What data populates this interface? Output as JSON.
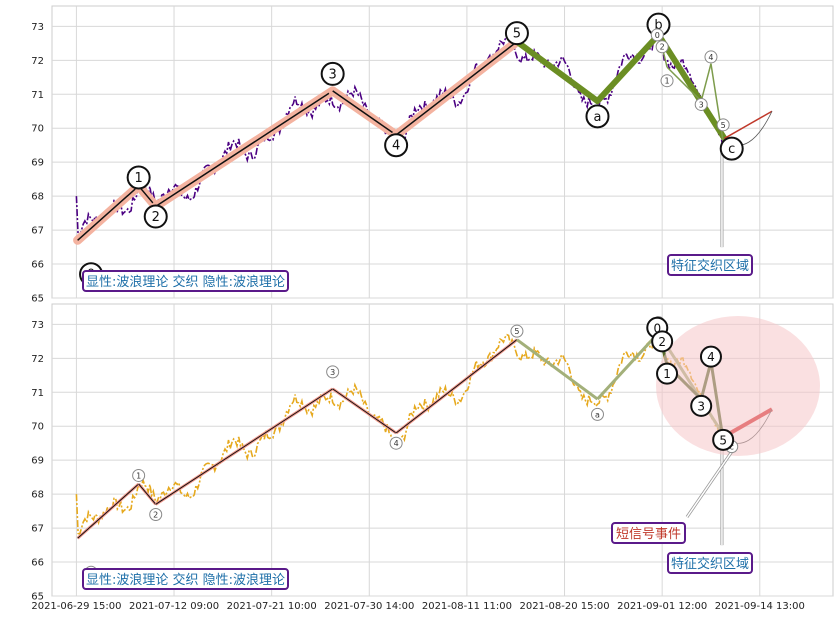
{
  "chart_data": [
    {
      "type": "line",
      "panel": "top",
      "ylim": [
        65,
        73.6
      ],
      "yticks": [
        65,
        66,
        67,
        68,
        69,
        70,
        71,
        72,
        73
      ],
      "grid": true,
      "legend_box": "显性:波浪理论 交织 隐性:波浪理论",
      "annotation_box": "特征交织区域",
      "price_color": "#4b0082",
      "wave_points": [
        {
          "label": "0",
          "x": 0.05,
          "y": 66.7
        },
        {
          "label": "1",
          "x": 2.55,
          "y": 68.3
        },
        {
          "label": "2",
          "x": 3.25,
          "y": 67.7
        },
        {
          "label": "3",
          "x": 10.5,
          "y": 71.1
        },
        {
          "label": "4",
          "x": 13.1,
          "y": 69.8
        },
        {
          "label": "5",
          "x": 18.05,
          "y": 72.55
        },
        {
          "label": "a",
          "x": 21.35,
          "y": 70.8
        },
        {
          "label": "b",
          "x": 23.85,
          "y": 72.75
        },
        {
          "label": "c",
          "x": 26.55,
          "y": 69.7
        }
      ],
      "small_wave_points": [
        {
          "label": "0",
          "x": 23.8,
          "y": 72.75
        },
        {
          "label": "1",
          "x": 24.2,
          "y": 71.8
        },
        {
          "label": "2",
          "x": 24.0,
          "y": 72.4
        },
        {
          "label": "3",
          "x": 25.6,
          "y": 70.8
        },
        {
          "label": "4",
          "x": 26.0,
          "y": 71.9
        },
        {
          "label": "5",
          "x": 26.5,
          "y": 69.6
        }
      ],
      "line_labels": [
        {
          "label": "0",
          "x": 0.6,
          "y": 65.7
        },
        {
          "label": "1",
          "x": 2.55,
          "y": 68.55
        },
        {
          "label": "2",
          "x": 3.25,
          "y": 67.4
        },
        {
          "label": "3",
          "x": 10.5,
          "y": 71.6
        },
        {
          "label": "4",
          "x": 13.1,
          "y": 69.5
        },
        {
          "label": "5",
          "x": 18.05,
          "y": 72.8
        },
        {
          "label": "a",
          "x": 21.35,
          "y": 70.35
        },
        {
          "label": "b",
          "x": 23.85,
          "y": 73.05
        },
        {
          "label": "c",
          "x": 26.85,
          "y": 69.4
        }
      ]
    },
    {
      "type": "line",
      "panel": "bottom",
      "ylim": [
        65,
        73.6
      ],
      "yticks": [
        65,
        66,
        67,
        68,
        69,
        70,
        71,
        72,
        73
      ],
      "grid": true,
      "legend_box": "显性:波浪理论 交织 隐性:波浪理论",
      "annotation_box": "特征交织区域",
      "signal_box": "短信号事件",
      "price_color": "#e6a91e",
      "x_tick_labels": [
        "2021-06-29 15:00",
        "2021-07-12 09:00",
        "2021-07-21 10:00",
        "2021-07-30 14:00",
        "2021-08-11 11:00",
        "2021-08-20 15:00",
        "2021-09-01 12:00",
        "2021-09-14 13:00"
      ],
      "x_tick_positions": [
        0,
        4,
        8,
        12,
        16,
        20,
        24,
        28
      ],
      "xlim": [
        -1,
        31
      ]
    }
  ],
  "colors": {
    "up_wave": "#f4b3a0",
    "down_wave": "#6b8e23",
    "legend_border": "#5a1a8a",
    "legend_text": "#1e6fa8",
    "signal_text": "#c0392b",
    "ellipse": "#f5c6c9"
  }
}
